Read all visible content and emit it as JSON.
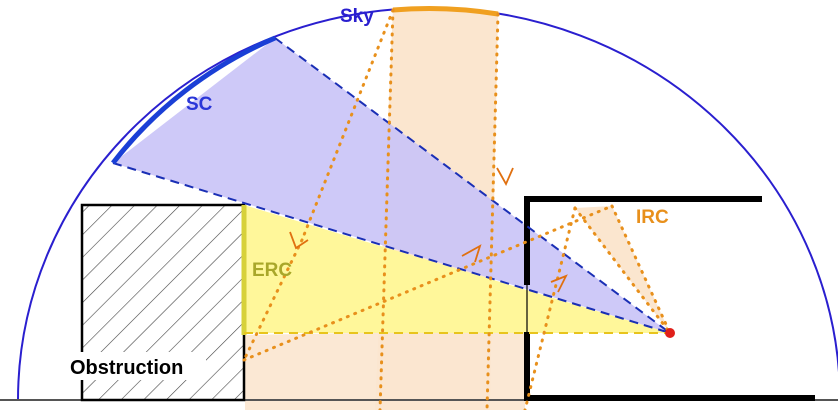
{
  "labels": {
    "sky": "Sky",
    "sc": "SC",
    "erc": "ERC",
    "irc": "IRC",
    "obstruction": "Obstruction"
  },
  "colors": {
    "sky_dome": "#2a1fcf",
    "sc": "#1a3fd6",
    "sc_fill": "#c9c3f7",
    "erc": "#d7d13a",
    "erc_fill": "#fff79a",
    "irc": "#e8901c",
    "irc_fill": "#fbe6cf",
    "point": "#e0201a",
    "text_erc": "#a9a72a",
    "text_irc": "#e8901c",
    "text_sc": "#2a36d8",
    "outline": "#000000"
  }
}
